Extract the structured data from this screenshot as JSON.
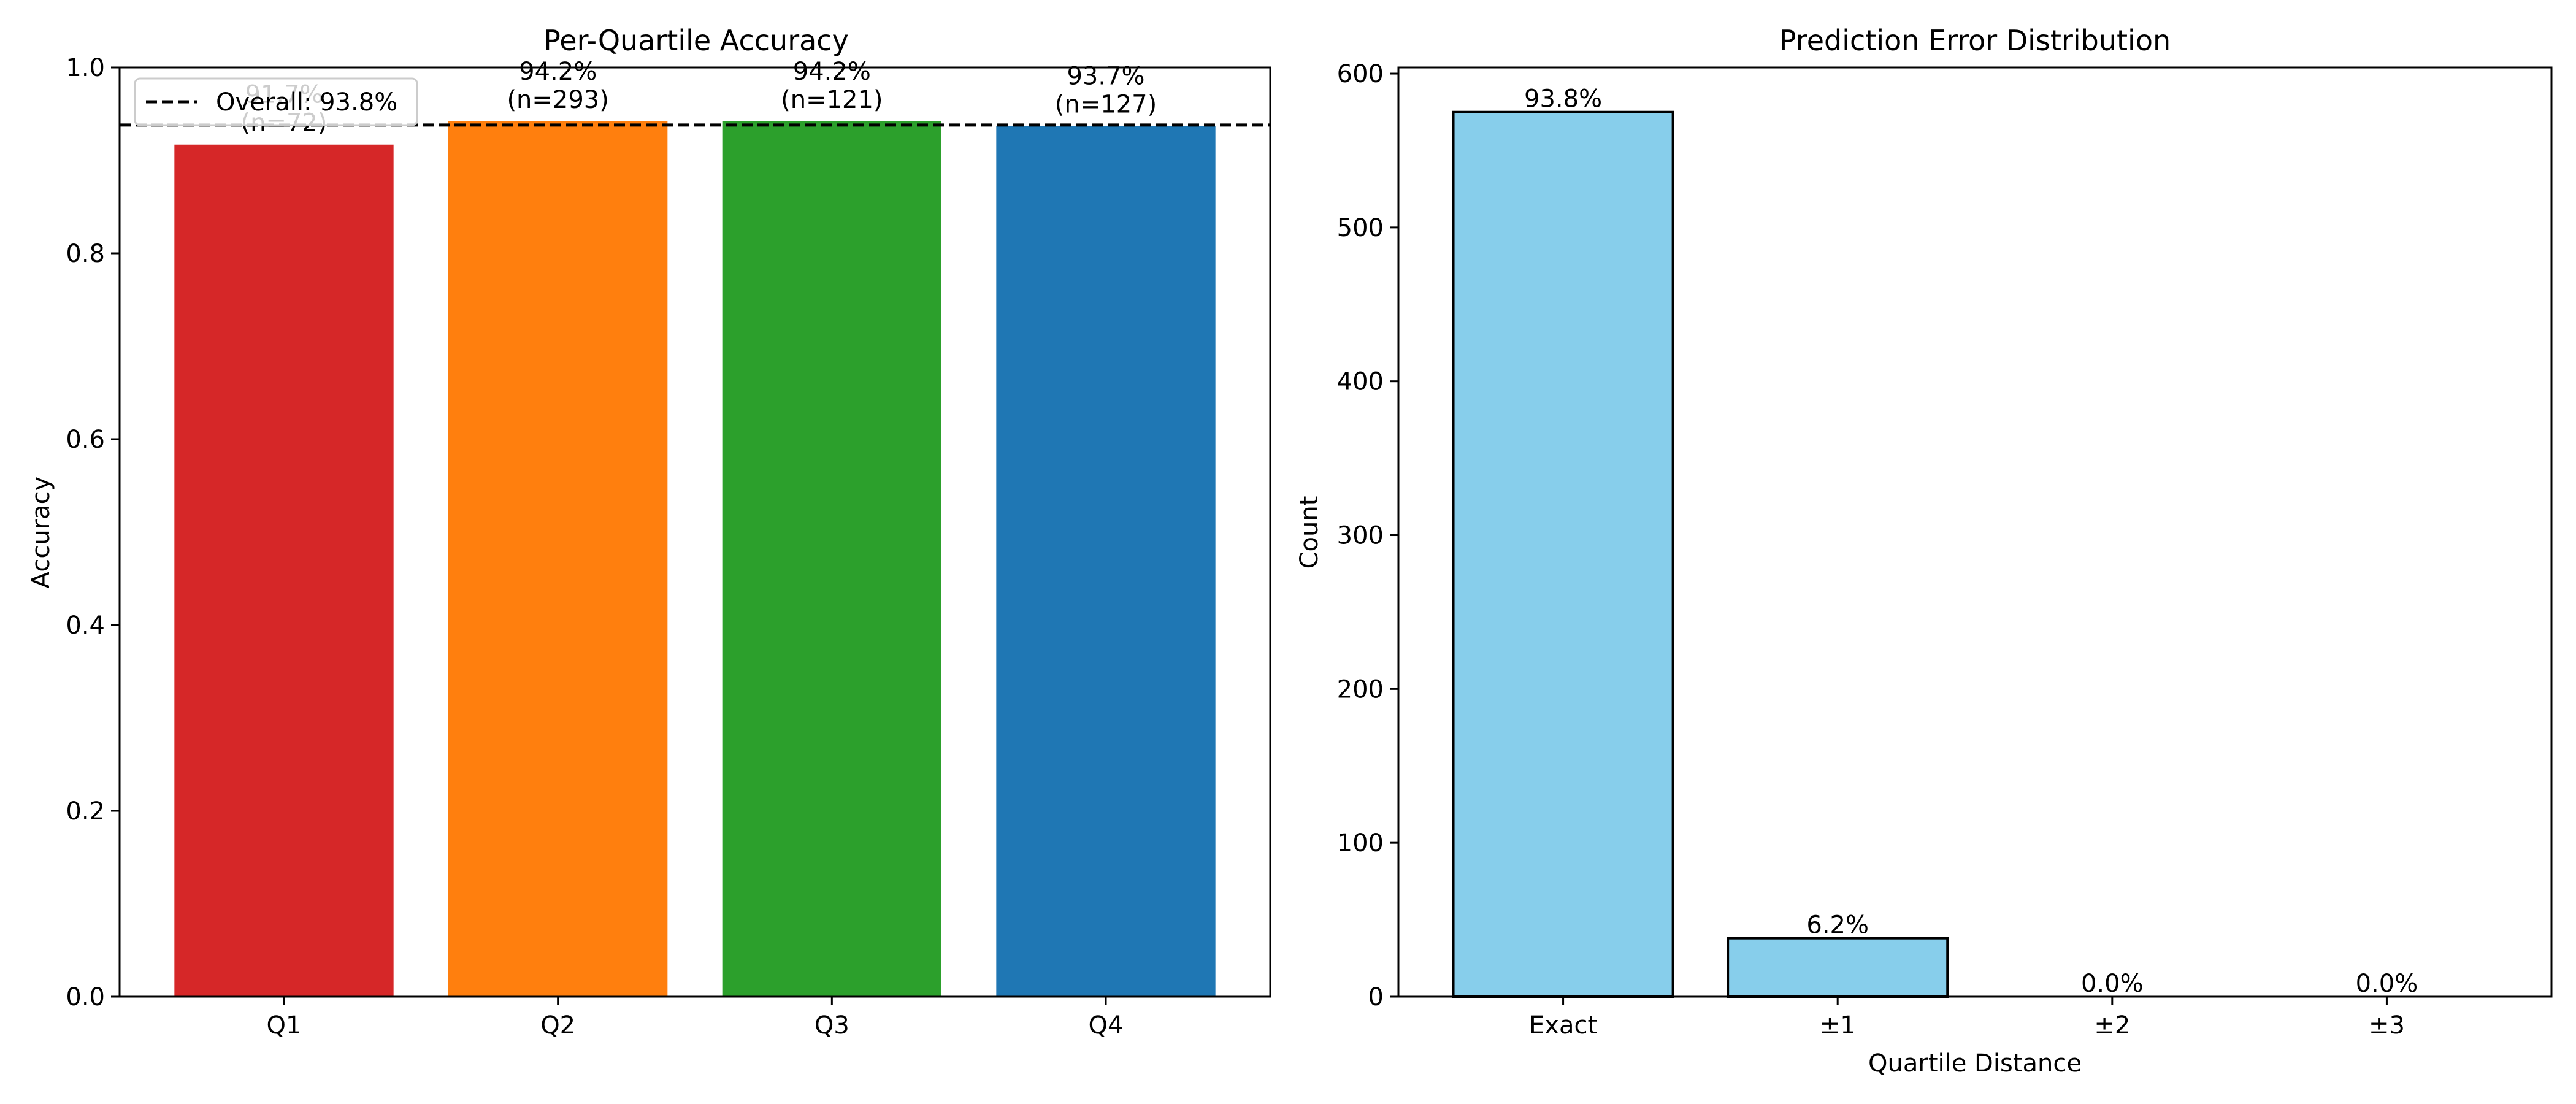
{
  "chart_data": [
    {
      "type": "bar",
      "title": "Per-Quartile Accuracy",
      "xlabel": "",
      "ylabel": "Accuracy",
      "categories": [
        "Q1",
        "Q2",
        "Q3",
        "Q4"
      ],
      "values": [
        0.917,
        0.942,
        0.942,
        0.937
      ],
      "bar_labels": [
        [
          "91.7%",
          "(n=72)"
        ],
        [
          "94.2%",
          "(n=293)"
        ],
        [
          "94.2%",
          "(n=121)"
        ],
        [
          "93.7%",
          "(n=127)"
        ]
      ],
      "colors": [
        "#d62728",
        "#ff7f0e",
        "#2ca02c",
        "#1f77b4"
      ],
      "ylim": [
        0,
        1.0
      ],
      "yticks": [
        0.0,
        0.2,
        0.4,
        0.6,
        0.8,
        1.0
      ],
      "ytick_labels": [
        "0.0",
        "0.2",
        "0.4",
        "0.6",
        "0.8",
        "1.0"
      ],
      "reference_line": {
        "value": 0.938,
        "style": "dashed",
        "color": "#000000",
        "label": "Overall: 93.8%"
      },
      "legend": {
        "placement": "top-left",
        "entries": [
          "Overall: 93.8%"
        ]
      },
      "grid": false
    },
    {
      "type": "bar",
      "title": "Prediction Error Distribution",
      "xlabel": "Quartile Distance",
      "ylabel": "Count",
      "categories": [
        "Exact",
        "±1",
        "±2",
        "±3"
      ],
      "values": [
        575,
        38,
        0,
        0
      ],
      "bar_labels": [
        "93.8%",
        "6.2%",
        "0.0%",
        "0.0%"
      ],
      "color": "#87ceeb",
      "edgecolor": "#000000",
      "ylim": [
        0,
        604
      ],
      "yticks": [
        0,
        100,
        200,
        300,
        400,
        500,
        600
      ],
      "ytick_labels": [
        "0",
        "100",
        "200",
        "300",
        "400",
        "500",
        "600"
      ],
      "grid": false
    }
  ]
}
